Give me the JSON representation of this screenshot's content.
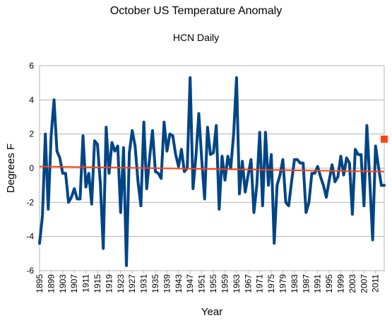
{
  "chart_data": {
    "type": "line",
    "title": "October US Temperature Anomaly",
    "subtitle": "HCN Daily",
    "xlabel": "Year",
    "ylabel": "Degrees F",
    "xlim": [
      1895,
      2014
    ],
    "ylim": [
      -6,
      6
    ],
    "y_ticks": [
      -6,
      -4,
      -2,
      0,
      2,
      4,
      6
    ],
    "x_tick_labels": [
      "1895",
      "1899",
      "1903",
      "1907",
      "1911",
      "1915",
      "1919",
      "1923",
      "1927",
      "1931",
      "1935",
      "1939",
      "1943",
      "1947",
      "1951",
      "1955",
      "1959",
      "1963",
      "1967",
      "1971",
      "1975",
      "1979",
      "1983",
      "1987",
      "1991",
      "1995",
      "1999",
      "2003",
      "2007",
      "2011"
    ],
    "grid": "horizontal",
    "colors": {
      "series": "#004586",
      "trend": "#ff420e",
      "grid": "#b3b3b3"
    },
    "series": [
      {
        "x": [
          1895,
          1896,
          1897,
          1898,
          1899,
          1900,
          1901,
          1902,
          1903,
          1904,
          1905,
          1906,
          1907,
          1908,
          1909,
          1910,
          1911,
          1912,
          1913,
          1914,
          1915,
          1916,
          1917,
          1918,
          1919,
          1920,
          1921,
          1922,
          1923,
          1924,
          1925,
          1926,
          1927,
          1928,
          1929,
          1930,
          1931,
          1932,
          1933,
          1934,
          1935,
          1936,
          1937,
          1938,
          1939,
          1940,
          1941,
          1942,
          1943,
          1944,
          1945,
          1946,
          1947,
          1948,
          1949,
          1950,
          1951,
          1952,
          1953,
          1954,
          1955,
          1956,
          1957,
          1958,
          1959,
          1960,
          1961,
          1962,
          1963,
          1964,
          1965,
          1966,
          1967,
          1968,
          1969,
          1970,
          1971,
          1972,
          1973,
          1974,
          1975,
          1976,
          1977,
          1978,
          1979,
          1980,
          1981,
          1982,
          1983,
          1984,
          1985,
          1986,
          1987,
          1988,
          1989,
          1990,
          1991,
          1992,
          1993,
          1994,
          1995,
          1996,
          1997,
          1998,
          1999,
          2000,
          2001,
          2002,
          2003,
          2004,
          2005,
          2006,
          2007,
          2008,
          2009,
          2010,
          2011,
          2012,
          2013,
          2014
        ],
        "values": [
          -4.4,
          -2.8,
          2.0,
          -2.4,
          1.9,
          4.0,
          1.0,
          0.6,
          -0.3,
          -0.3,
          -2.0,
          -1.7,
          -1.2,
          -1.8,
          -1.8,
          1.9,
          -1.1,
          -0.3,
          -2.1,
          1.6,
          1.4,
          -0.9,
          -4.7,
          2.4,
          -0.3,
          1.5,
          1.0,
          1.3,
          -2.6,
          1.2,
          -5.7,
          0.9,
          2.2,
          1.3,
          -0.8,
          -2.2,
          2.7,
          -1.2,
          0.6,
          2.2,
          -0.2,
          -0.3,
          -0.6,
          2.7,
          1.0,
          2.0,
          1.9,
          0.8,
          0.1,
          1.1,
          -0.2,
          0.0,
          5.3,
          -1.2,
          0.7,
          3.2,
          0.5,
          -1.8,
          2.4,
          0.8,
          0.9,
          2.5,
          -2.4,
          0.7,
          -0.7,
          0.7,
          0.0,
          2.0,
          5.3,
          -1.5,
          0.4,
          -1.4,
          -0.4,
          0.5,
          -2.6,
          -1.0,
          2.1,
          -2.2,
          2.1,
          -1.0,
          0.8,
          -4.4,
          -1.0,
          -0.4,
          0.5,
          -2.0,
          -2.2,
          -0.8,
          0.5,
          0.5,
          0.3,
          0.3,
          -2.6,
          -2.0,
          -0.3,
          -0.3,
          0.1,
          -0.5,
          -1.0,
          -1.7,
          -0.7,
          0.2,
          -0.8,
          -0.5,
          0.7,
          -0.4,
          0.6,
          0.3,
          -2.7,
          1.1,
          0.8,
          0.8,
          -2.2,
          2.5,
          -0.7,
          -4.2,
          1.3,
          0.1,
          -1.0,
          -1.0
        ]
      },
      {
        "x": [
          1895,
          2014
        ],
        "values": [
          0.1,
          -0.2
        ]
      }
    ],
    "marker": {
      "x": 2014,
      "y": 1.7
    }
  }
}
